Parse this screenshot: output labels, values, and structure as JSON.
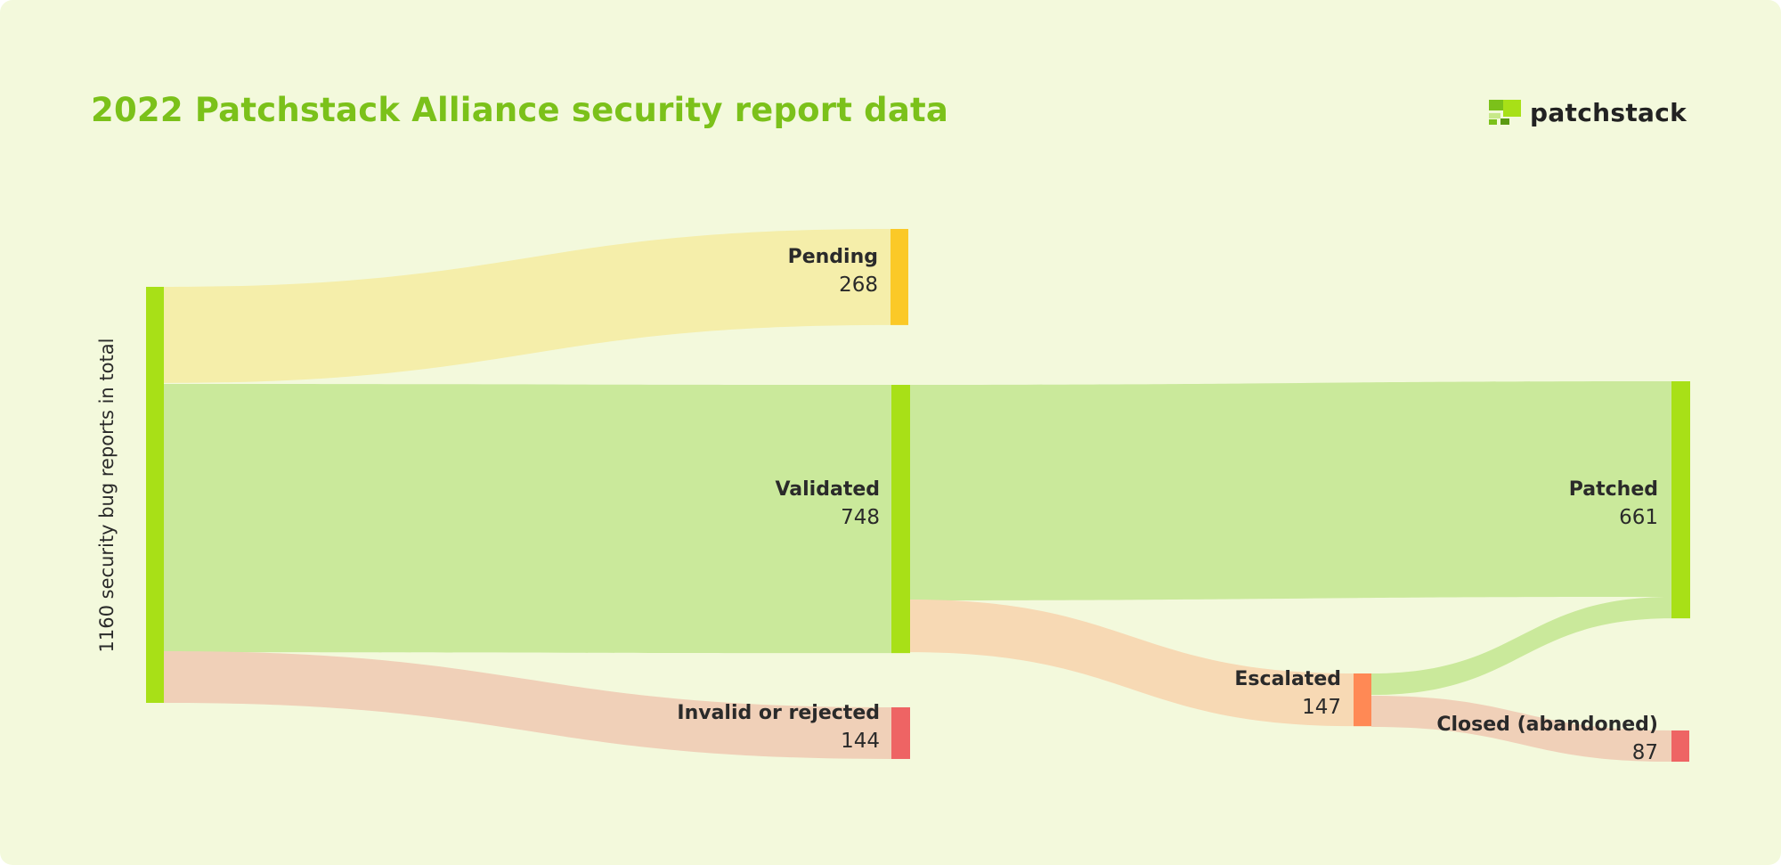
{
  "header": {
    "title": "2022 Patchstack Alliance security report data",
    "brand": "patchstack"
  },
  "colors": {
    "background": "#f3f9dc",
    "title": "#7bc11a",
    "source_node": "#a8e017",
    "pending_node": "#fbc927",
    "pending_link": "#f5eeaa",
    "validated_node": "#a8e017",
    "validated_link": "#cae99b",
    "rejected_node": "#ee6464",
    "rejected_link": "#f0d0b8",
    "escalated_node": "#ff8955",
    "escalated_link": "#f7d9b4",
    "patched_node": "#a8e017",
    "patched_link": "#cae99b",
    "closed_node": "#ee6464",
    "closed_link": "#f0d0b8"
  },
  "chart_data": {
    "type": "sankey",
    "title": "2022 Patchstack Alliance security report data",
    "source_label": "1160 security bug reports in total",
    "total": 1160,
    "nodes": [
      {
        "id": "total",
        "label": "",
        "value": 1160
      },
      {
        "id": "pending",
        "label": "Pending",
        "value": 268
      },
      {
        "id": "validated",
        "label": "Validated",
        "value": 748
      },
      {
        "id": "rejected",
        "label": "Invalid or rejected",
        "value": 144
      },
      {
        "id": "escalated",
        "label": "Escalated",
        "value": 147
      },
      {
        "id": "patched",
        "label": "Patched",
        "value": 661
      },
      {
        "id": "closed",
        "label": "Closed (abandoned)",
        "value": 87
      }
    ],
    "links": [
      {
        "source": "total",
        "target": "pending",
        "value": 268
      },
      {
        "source": "total",
        "target": "validated",
        "value": 748
      },
      {
        "source": "total",
        "target": "rejected",
        "value": 144
      },
      {
        "source": "validated",
        "target": "patched",
        "value": 601
      },
      {
        "source": "validated",
        "target": "escalated",
        "value": 147
      },
      {
        "source": "escalated",
        "target": "patched",
        "value": 60
      },
      {
        "source": "escalated",
        "target": "closed",
        "value": 87
      }
    ]
  }
}
